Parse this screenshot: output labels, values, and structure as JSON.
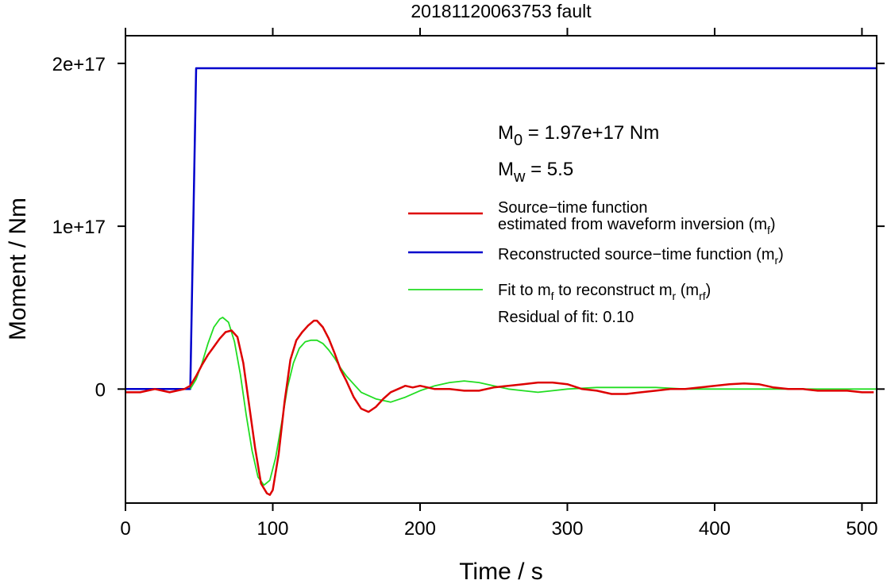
{
  "chart_data": {
    "type": "line",
    "title": "20181120063753 fault",
    "xlabel": "Time / s",
    "ylabel": "Moment / Nm",
    "xlim": [
      0,
      510
    ],
    "ylim": [
      -7e+16,
      2.17e+17
    ],
    "x_ticks": [
      {
        "value": 0,
        "label": "0"
      },
      {
        "value": 100,
        "label": "100"
      },
      {
        "value": 200,
        "label": "200"
      },
      {
        "value": 300,
        "label": "300"
      },
      {
        "value": 400,
        "label": "400"
      },
      {
        "value": 500,
        "label": "500"
      }
    ],
    "y_ticks": [
      {
        "value": 0,
        "label": "0"
      },
      {
        "value": 1e+17,
        "label": "1e+17"
      },
      {
        "value": 2e+17,
        "label": "2e+17"
      }
    ],
    "grid": false,
    "legend_position": "right",
    "annotations": {
      "m0": {
        "base": "M",
        "sub": "0",
        "rest": " = 1.97e+17 Nm"
      },
      "mw": {
        "base": "M",
        "sub": "w",
        "rest": " = 5.5"
      },
      "residual": "Residual of fit: 0.10"
    },
    "legend": [
      {
        "color": "#dd0000",
        "line1": "Source−time function",
        "line2_pre": "estimated from waveform inversion (m",
        "line2_sub": "f",
        "line2_post": ")"
      },
      {
        "color": "#0000cc",
        "pre": "Reconstructed source−time function (m",
        "sub": "r",
        "post": ")"
      },
      {
        "color": "#22dd22",
        "pre": "Fit to m",
        "sub1": "f",
        "mid": " to reconstruct m",
        "sub2": "r",
        "mid2": " (m",
        "sub3": "rf",
        "post": ")"
      }
    ],
    "series": [
      {
        "name": "Source−time function estimated from waveform inversion (mf)",
        "color": "#dd0000",
        "x": [
          0,
          10,
          20,
          30,
          40,
          44,
          48,
          52,
          56,
          60,
          64,
          68,
          72,
          76,
          80,
          84,
          88,
          92,
          96,
          98,
          100,
          104,
          108,
          112,
          116,
          120,
          124,
          128,
          130,
          134,
          138,
          142,
          146,
          150,
          155,
          160,
          165,
          170,
          175,
          180,
          185,
          190,
          195,
          200,
          210,
          220,
          230,
          240,
          250,
          260,
          270,
          280,
          290,
          300,
          310,
          320,
          330,
          340,
          350,
          360,
          370,
          380,
          390,
          400,
          410,
          420,
          430,
          440,
          450,
          460,
          470,
          480,
          490,
          500,
          508
        ],
        "y": [
          -2000000000000000.0,
          -2000000000000000.0,
          0,
          -2000000000000000.0,
          0,
          2000000000000000.0,
          8000000000000000.0,
          1.5e+16,
          2.1e+16,
          2.6e+16,
          3.1e+16,
          3.5e+16,
          3.6e+16,
          3.2e+16,
          1.6e+16,
          -1e+16,
          -3.6e+16,
          -5.8e+16,
          -6.4e+16,
          -6.5e+16,
          -6.2e+16,
          -4e+16,
          -8000000000000000.0,
          1.8e+16,
          3e+16,
          3.5e+16,
          3.9e+16,
          4.2e+16,
          4.2e+16,
          3.8e+16,
          3.1e+16,
          2.2e+16,
          1.2e+16,
          5000000000000000.0,
          -5000000000000000.0,
          -1.2e+16,
          -1.4e+16,
          -1.1e+16,
          -6000000000000000.0,
          -2000000000000000.0,
          0.0,
          2000000000000000.0,
          1000000000000000.0,
          2000000000000000.0,
          0.0,
          0.0,
          -1000000000000000.0,
          -1000000000000000.0,
          1000000000000000.0,
          2000000000000000.0,
          3000000000000000.0,
          4000000000000000.0,
          4000000000000000.0,
          3000000000000000.0,
          0.0,
          -1000000000000000.0,
          -3000000000000000.0,
          -3000000000000000.0,
          -2000000000000000.0,
          -1000000000000000.0,
          0.0,
          0.0,
          1000000000000000.0,
          2000000000000000.0,
          3000000000000000.0,
          3500000000000000.0,
          3000000000000000.0,
          1000000000000000.0,
          0.0,
          0.0,
          -1000000000000000.0,
          -1000000000000000.0,
          -1000000000000000.0,
          -2000000000000000.0,
          -2000000000000000.0
        ]
      },
      {
        "name": "Reconstructed source−time function (mr)",
        "color": "#0000cc",
        "x": [
          0,
          44,
          48,
          510
        ],
        "y": [
          0,
          0,
          1.97e+17,
          1.97e+17
        ]
      },
      {
        "name": "Fit to mf to reconstruct mr (mrf)",
        "color": "#22dd22",
        "x": [
          44,
          48,
          52,
          56,
          60,
          64,
          66,
          70,
          74,
          78,
          82,
          86,
          90,
          94,
          98,
          102,
          106,
          110,
          114,
          118,
          122,
          126,
          130,
          134,
          138,
          142,
          146,
          150,
          155,
          160,
          170,
          180,
          190,
          200,
          210,
          220,
          230,
          240,
          250,
          260,
          270,
          280,
          290,
          300,
          320,
          340,
          360,
          380,
          400,
          420,
          440,
          460,
          480,
          500,
          510
        ],
        "y": [
          0,
          6000000000000000.0,
          1.6e+16,
          2.8e+16,
          3.8e+16,
          4.3e+16,
          4.4e+16,
          4.1e+16,
          2.9e+16,
          9000000000000000.0,
          -1.6e+16,
          -3.8e+16,
          -5.4e+16,
          -5.9e+16,
          -5.6e+16,
          -4.2e+16,
          -2.1e+16,
          1000000000000000.0,
          1.6e+16,
          2.5e+16,
          2.9e+16,
          3e+16,
          3e+16,
          2.8e+16,
          2.4e+16,
          1.9e+16,
          1.3e+16,
          8000000000000000.0,
          3000000000000000.0,
          -2000000000000000.0,
          -6000000000000000.0,
          -8000000000000000.0,
          -5000000000000000.0,
          -1000000000000000.0,
          2000000000000000.0,
          4000000000000000.0,
          5000000000000000.0,
          4000000000000000.0,
          2000000000000000.0,
          0.0,
          -1000000000000000.0,
          -2000000000000000.0,
          -1000000000000000.0,
          0.0,
          1000000000000000.0,
          1000000000000000.0,
          1000000000000000.0,
          0.0,
          0.0,
          0.0,
          0.0,
          0.0,
          0.0,
          0.0,
          0.0
        ]
      }
    ]
  }
}
